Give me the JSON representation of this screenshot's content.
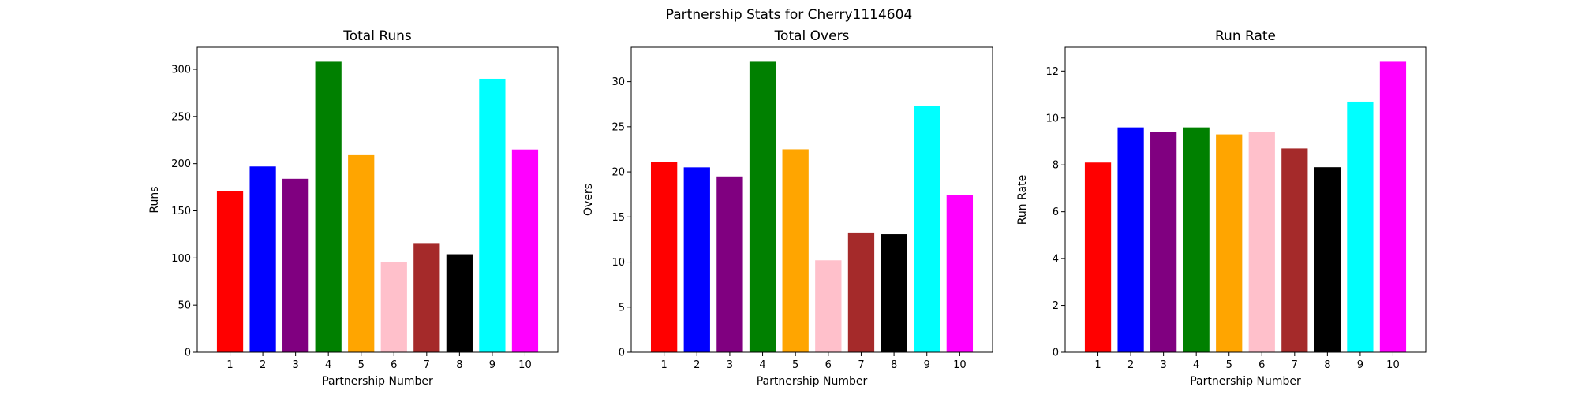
{
  "figure": {
    "title": "Partnership Stats for Cherry1114604"
  },
  "chart_data": [
    {
      "type": "bar",
      "title": "Total Runs",
      "xlabel": "Partnership Number",
      "ylabel": "Runs",
      "categories": [
        "1",
        "2",
        "3",
        "4",
        "5",
        "6",
        "7",
        "8",
        "9",
        "10"
      ],
      "values": [
        171,
        197,
        184,
        308,
        209,
        96,
        115,
        104,
        290,
        215
      ],
      "colors": [
        "#ff0000",
        "#0000ff",
        "#800080",
        "#008000",
        "#ffa500",
        "#ffc0cb",
        "#a52a2a",
        "#000000",
        "#00ffff",
        "#ff00ff"
      ],
      "ylim": [
        0,
        323.4
      ],
      "yticks": [
        0,
        50,
        100,
        150,
        200,
        250,
        300
      ],
      "grid": false
    },
    {
      "type": "bar",
      "title": "Total Overs",
      "xlabel": "Partnership Number",
      "ylabel": "Overs",
      "categories": [
        "1",
        "2",
        "3",
        "4",
        "5",
        "6",
        "7",
        "8",
        "9",
        "10"
      ],
      "values": [
        21.1,
        20.5,
        19.5,
        32.2,
        22.5,
        10.2,
        13.2,
        13.1,
        27.3,
        17.4
      ],
      "colors": [
        "#ff0000",
        "#0000ff",
        "#800080",
        "#008000",
        "#ffa500",
        "#ffc0cb",
        "#a52a2a",
        "#000000",
        "#00ffff",
        "#ff00ff"
      ],
      "ylim": [
        0,
        33.81
      ],
      "yticks": [
        0,
        5,
        10,
        15,
        20,
        25,
        30
      ],
      "grid": false
    },
    {
      "type": "bar",
      "title": "Run Rate",
      "xlabel": "Partnership Number",
      "ylabel": "Run Rate",
      "categories": [
        "1",
        "2",
        "3",
        "4",
        "5",
        "6",
        "7",
        "8",
        "9",
        "10"
      ],
      "values": [
        8.1,
        9.6,
        9.4,
        9.6,
        9.3,
        9.4,
        8.7,
        7.9,
        10.7,
        12.4
      ],
      "colors": [
        "#ff0000",
        "#0000ff",
        "#800080",
        "#008000",
        "#ffa500",
        "#ffc0cb",
        "#a52a2a",
        "#000000",
        "#00ffff",
        "#ff00ff"
      ],
      "ylim": [
        0,
        13.02
      ],
      "yticks": [
        0,
        2,
        4,
        6,
        8,
        10,
        12
      ],
      "grid": false
    }
  ]
}
